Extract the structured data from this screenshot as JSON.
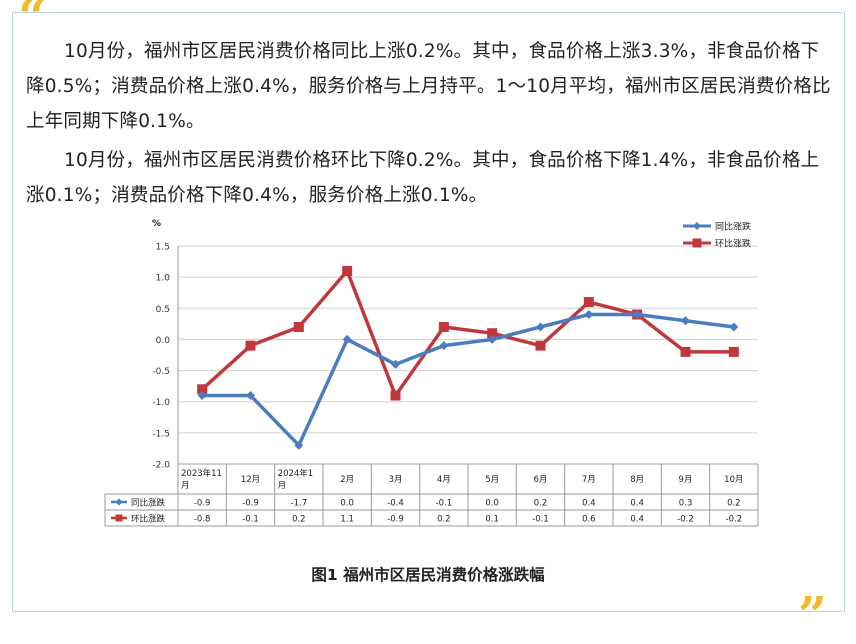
{
  "decor": {
    "open_quote": "“",
    "close_quote": "”",
    "quote_color": "#f2b830"
  },
  "paragraphs": [
    "10月份，福州市区居民消费价格同比上涨0.2%。其中，食品价格上涨3.3%，非食品价格下降0.5%；消费品价格上涨0.4%，服务价格与上月持平。1～10月平均，福州市区居民消费价格比上年同期下降0.1%。",
    "10月份，福州市区居民消费价格环比下降0.2%。其中，食品价格下降1.4%，非食品价格上涨0.1%；消费品价格下降0.4%，服务价格上涨0.1%。"
  ],
  "caption": "图1 福州市区居民消费价格涨跌幅",
  "chart_data": {
    "type": "line",
    "ylabel": "%",
    "ylim": [
      -2.0,
      1.5
    ],
    "yticks": [
      "1.5",
      "1.0",
      "0.5",
      "0.0",
      "-0.5",
      "-1.0",
      "-1.5",
      "-2.0"
    ],
    "categories": [
      "2023年11月",
      "12月",
      "2024年1月",
      "2月",
      "3月",
      "4月",
      "5月",
      "6月",
      "7月",
      "8月",
      "9月",
      "10月"
    ],
    "grid": true,
    "legend_position": "top-right",
    "data_table": true,
    "series": [
      {
        "name": "同比涨跌",
        "color": "#4a7dbf",
        "marker": "diamond",
        "values": [
          -0.9,
          -0.9,
          -1.7,
          0.0,
          -0.4,
          -0.1,
          0.0,
          0.2,
          0.4,
          0.4,
          0.3,
          0.2
        ],
        "labels": [
          "-0.9",
          "-0.9",
          "-1.7",
          "0.0",
          "-0.4",
          "-0.1",
          "0.0",
          "0.2",
          "0.4",
          "0.4",
          "0.3",
          "0.2"
        ]
      },
      {
        "name": "环比涨跌",
        "color": "#c0383c",
        "marker": "square",
        "values": [
          -0.8,
          -0.1,
          0.2,
          1.1,
          -0.9,
          0.2,
          0.1,
          -0.1,
          0.6,
          0.4,
          -0.2,
          -0.2
        ],
        "labels": [
          "-0.8",
          "-0.1",
          "0.2",
          "1.1",
          "-0.9",
          "0.2",
          "0.1",
          "-0.1",
          "0.6",
          "0.4",
          "-0.2",
          "-0.2"
        ]
      }
    ]
  }
}
